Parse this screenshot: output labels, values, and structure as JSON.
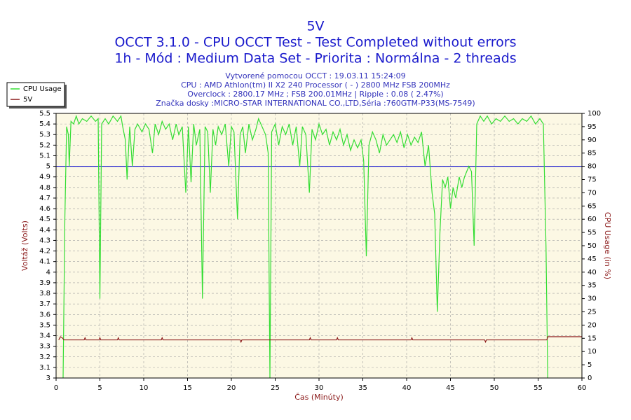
{
  "chart_data": {
    "type": "line",
    "title": "5V",
    "subtitle": [
      "OCCT 3.1.0 - CPU OCCT Test - Test Completed without errors",
      "1h - Mód : Medium Data Set - Priorita : Normálna - 2 threads"
    ],
    "info": [
      "Vytvorené pomocou OCCT : 19.03.11 15:24:09",
      "CPU : AMD Athlon(tm) II X2 240 Processor ( - ) 2800 MHz FSB 200MHz",
      "Overclock : 2800.17 MHz ; FSB 200.01MHz | Ripple : 0.08 ( 2.47%)",
      "Značka dosky :MICRO-STAR INTERNATIONAL CO.,LTD,Séria :760GTM-P33(MS-7549)"
    ],
    "xlabel": "Čas (Minúty)",
    "ylabel": "Voltáž (Volts)",
    "y2label": "CPU Usage (in %)",
    "xlim": [
      0,
      60
    ],
    "xticks": [
      0,
      5,
      10,
      15,
      20,
      25,
      30,
      35,
      40,
      45,
      50,
      55,
      60
    ],
    "ylim": [
      3,
      5.5
    ],
    "yticks": [
      3,
      3.1,
      3.2,
      3.3,
      3.4,
      3.5,
      3.6,
      3.7,
      3.8,
      3.9,
      4,
      4.1,
      4.2,
      4.3,
      4.4,
      4.5,
      4.6,
      4.7,
      4.8,
      4.9,
      5,
      5.1,
      5.2,
      5.3,
      5.4,
      5.5
    ],
    "y2lim": [
      0,
      100
    ],
    "y2ticks": [
      0,
      5,
      10,
      15,
      20,
      25,
      30,
      35,
      40,
      45,
      50,
      55,
      60,
      65,
      70,
      75,
      80,
      85,
      90,
      95,
      100
    ],
    "hline": 5,
    "hline_color": "#0000cc",
    "grid": true,
    "legend": "top-left",
    "series": [
      {
        "name": "CPU Usage",
        "color": "#33dd33",
        "axis": "y2",
        "x": [
          0.8,
          1.0,
          1.2,
          1.4,
          1.5,
          1.7,
          2,
          2.3,
          2.6,
          3,
          3.5,
          4,
          4.5,
          4.8,
          5.0,
          5.2,
          5.6,
          6,
          6.5,
          7,
          7.4,
          7.6,
          7.9,
          8.1,
          8.4,
          8.7,
          9,
          9.3,
          9.8,
          10.2,
          10.6,
          11,
          11.3,
          11.7,
          12.1,
          12.5,
          12.9,
          13.3,
          13.7,
          14,
          14.4,
          14.8,
          15.1,
          15.4,
          15.7,
          16,
          16.4,
          16.7,
          17,
          17.3,
          17.6,
          17.9,
          18.2,
          18.5,
          18.9,
          19.3,
          19.7,
          20,
          20.3,
          20.7,
          21,
          21.3,
          21.6,
          22,
          22.4,
          22.8,
          23.1,
          23.5,
          23.9,
          24.2,
          24.4,
          24.6,
          25,
          25.4,
          25.8,
          26.2,
          26.6,
          27,
          27.4,
          27.8,
          28.1,
          28.5,
          28.9,
          29.2,
          29.6,
          30,
          30.4,
          30.8,
          31.2,
          31.6,
          32,
          32.4,
          32.8,
          33.2,
          33.6,
          34,
          34.4,
          34.8,
          35.1,
          35.4,
          35.7,
          36.1,
          36.5,
          36.9,
          37.3,
          37.7,
          38.1,
          38.5,
          38.9,
          39.3,
          39.7,
          40.1,
          40.5,
          40.9,
          41.3,
          41.7,
          42.1,
          42.5,
          42.9,
          43.2,
          43.5,
          43.8,
          44.1,
          44.4,
          44.7,
          45,
          45.3,
          45.6,
          46,
          46.3,
          46.6,
          47.1,
          47.4,
          47.7,
          48,
          48.4,
          48.8,
          49.2,
          49.7,
          50.2,
          50.7,
          51.2,
          51.7,
          52.2,
          52.7,
          53.2,
          53.7,
          54.2,
          54.7,
          55.2,
          55.6,
          55.9,
          56.1
        ],
        "values": [
          0,
          60,
          95,
          92,
          80,
          97,
          96,
          99,
          96,
          98,
          97,
          99,
          97,
          98,
          30,
          96,
          98,
          96,
          99,
          97,
          99,
          95,
          90,
          75,
          95,
          80,
          94,
          96,
          93,
          96,
          94,
          85,
          96,
          92,
          97,
          94,
          96,
          90,
          96,
          92,
          95,
          70,
          95,
          74,
          96,
          88,
          94,
          30,
          95,
          93,
          70,
          94,
          88,
          95,
          92,
          96,
          80,
          95,
          93,
          60,
          92,
          95,
          85,
          96,
          90,
          94,
          98,
          95,
          92,
          85,
          0,
          93,
          96,
          88,
          95,
          92,
          96,
          88,
          95,
          80,
          95,
          92,
          70,
          94,
          90,
          96,
          92,
          94,
          88,
          93,
          90,
          94,
          88,
          92,
          86,
          90,
          87,
          90,
          82,
          46,
          88,
          93,
          90,
          85,
          92,
          88,
          90,
          92,
          89,
          93,
          87,
          92,
          88,
          91,
          89,
          93,
          80,
          88,
          70,
          62,
          25,
          55,
          75,
          72,
          76,
          64,
          72,
          68,
          76,
          72,
          76,
          80,
          78,
          50,
          96,
          99,
          97,
          99,
          96,
          98,
          97,
          99,
          97,
          98,
          96,
          98,
          97,
          99,
          96,
          98,
          96,
          50,
          0
        ]
      },
      {
        "name": "5V",
        "color": "#8b1a1a",
        "x": [
          0.3,
          0.5,
          0.7,
          0.9,
          3.2,
          3.3,
          3.4,
          4.9,
          5,
          5.1,
          7,
          7.1,
          7.2,
          12,
          12.1,
          12.2,
          21,
          21.1,
          21.2,
          28.9,
          29,
          29.1,
          32,
          32.1,
          32.2,
          40.5,
          40.6,
          40.7,
          48.9,
          49,
          49.1,
          56,
          56.1,
          60
        ],
        "values": [
          3.36,
          3.39,
          3.38,
          3.36,
          3.36,
          3.38,
          3.36,
          3.36,
          3.38,
          3.36,
          3.36,
          3.38,
          3.36,
          3.36,
          3.38,
          3.36,
          3.36,
          3.34,
          3.36,
          3.36,
          3.38,
          3.36,
          3.36,
          3.38,
          3.36,
          3.36,
          3.38,
          3.36,
          3.36,
          3.34,
          3.36,
          3.36,
          3.39,
          3.39
        ]
      }
    ]
  }
}
